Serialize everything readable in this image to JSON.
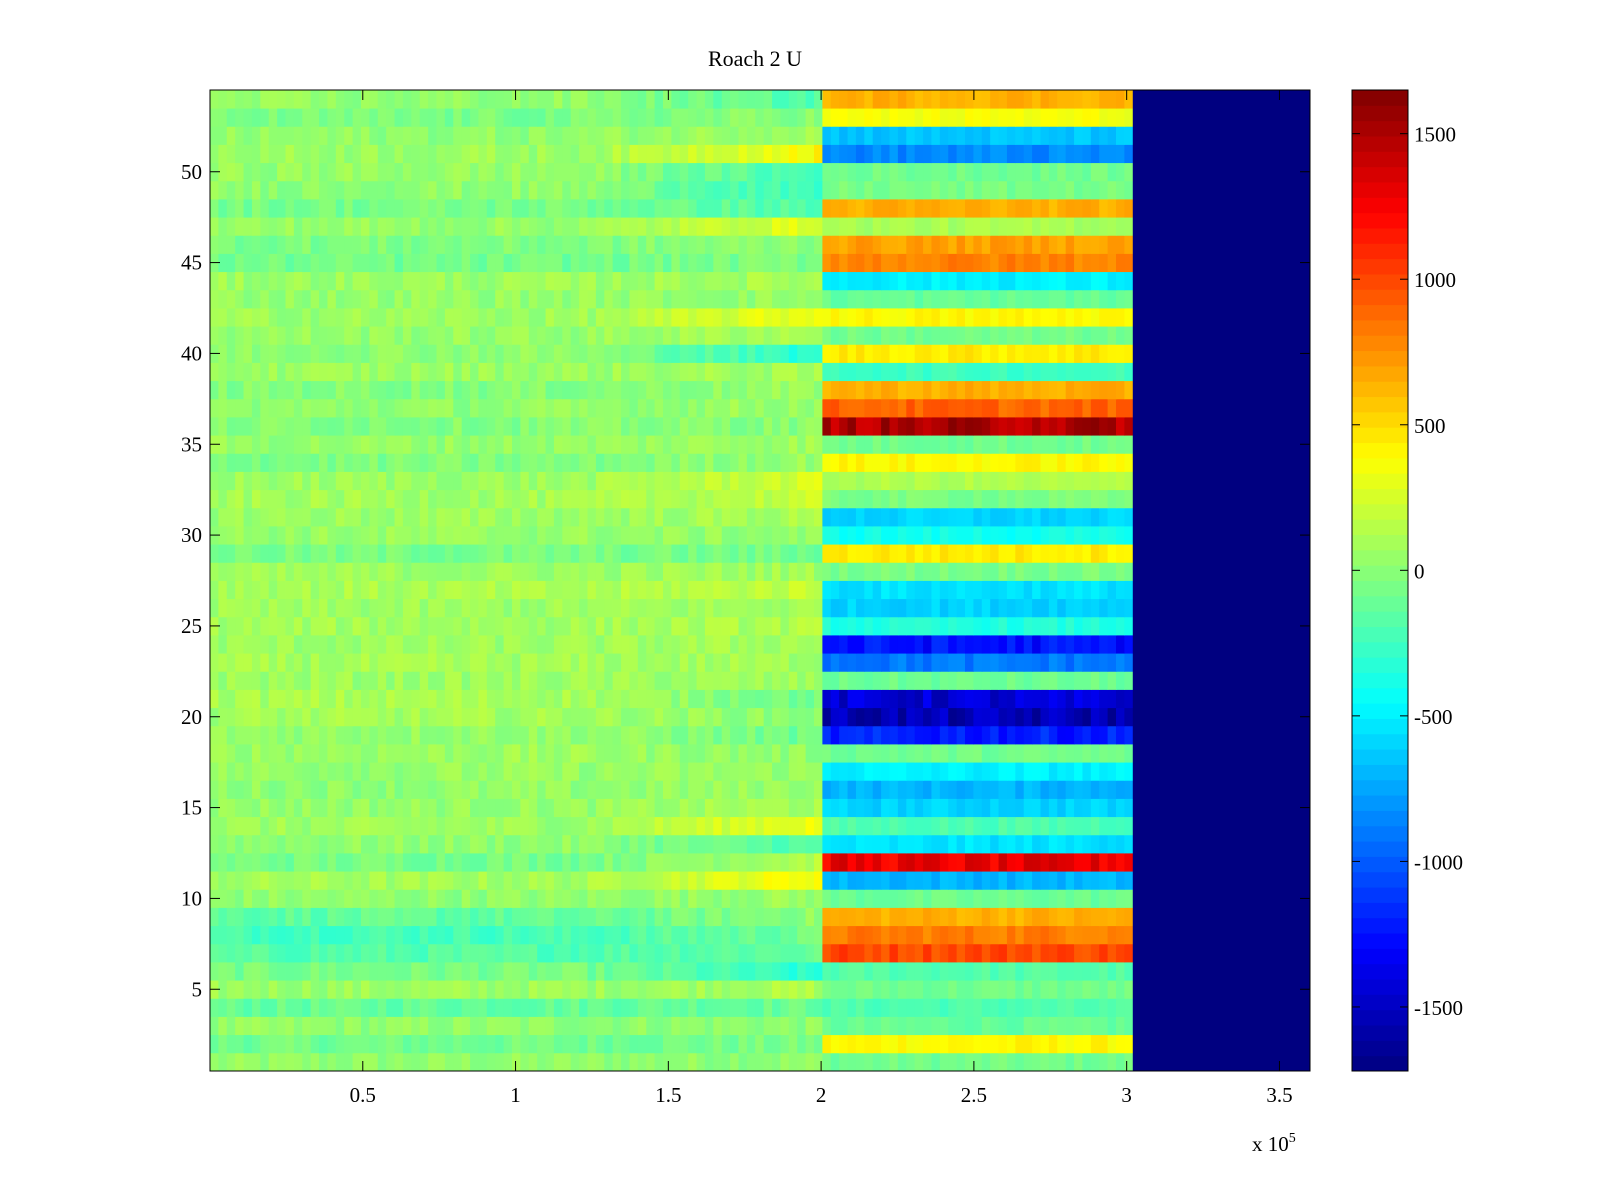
{
  "chart_data": {
    "type": "heatmap",
    "title": "Roach 2 U",
    "xlabel": "",
    "ylabel": "",
    "x_exponent_label": "x 10",
    "x_exponent_power": "5",
    "x_range_scaled": [
      0,
      3.6
    ],
    "x_multiplier": 100000,
    "y_range": [
      0.5,
      54.5
    ],
    "xticks": [
      {
        "value": 0.5,
        "label": "0.5"
      },
      {
        "value": 1,
        "label": "1"
      },
      {
        "value": 1.5,
        "label": "1.5"
      },
      {
        "value": 2,
        "label": "2"
      },
      {
        "value": 2.5,
        "label": "2.5"
      },
      {
        "value": 3,
        "label": "3"
      },
      {
        "value": 3.5,
        "label": "3.5"
      }
    ],
    "yticks": [
      {
        "value": 5,
        "label": "5"
      },
      {
        "value": 10,
        "label": "10"
      },
      {
        "value": 15,
        "label": "15"
      },
      {
        "value": 20,
        "label": "20"
      },
      {
        "value": 25,
        "label": "25"
      },
      {
        "value": 30,
        "label": "30"
      },
      {
        "value": 35,
        "label": "35"
      },
      {
        "value": 40,
        "label": "40"
      },
      {
        "value": 45,
        "label": "45"
      },
      {
        "value": 50,
        "label": "50"
      }
    ],
    "colormap": "jet",
    "clim": [
      -1720,
      1650
    ],
    "colorbar_ticks": [
      {
        "value": 1500,
        "label": "1500"
      },
      {
        "value": 1000,
        "label": "1000"
      },
      {
        "value": 500,
        "label": "500"
      },
      {
        "value": 0,
        "label": "0"
      },
      {
        "value": -500,
        "label": "-500"
      },
      {
        "value": -1000,
        "label": "-1000"
      },
      {
        "value": -1500,
        "label": "-1500"
      }
    ],
    "region_boundaries_scaled": [
      2.01,
      3.02
    ],
    "empty_region_value": -1720,
    "rows": [
      {
        "row": 1,
        "early": 20,
        "late": 20,
        "high": -80
      },
      {
        "row": 2,
        "early": -80,
        "late": -60,
        "high": 400
      },
      {
        "row": 3,
        "early": 20,
        "late": 10,
        "high": -120
      },
      {
        "row": 4,
        "early": -120,
        "late": -100,
        "high": -200
      },
      {
        "row": 5,
        "early": 60,
        "late": 120,
        "high": -80
      },
      {
        "row": 6,
        "early": -60,
        "late": -350,
        "high": -180
      },
      {
        "row": 7,
        "early": -180,
        "late": -120,
        "high": 1000
      },
      {
        "row": 8,
        "early": -220,
        "late": -80,
        "high": 820
      },
      {
        "row": 9,
        "early": -140,
        "late": 20,
        "high": 650
      },
      {
        "row": 10,
        "early": 20,
        "late": 60,
        "high": -100
      },
      {
        "row": 11,
        "early": 80,
        "late": 400,
        "high": -700
      },
      {
        "row": 12,
        "early": -60,
        "late": 150,
        "high": 1280
      },
      {
        "row": 13,
        "early": 20,
        "late": -200,
        "high": -550
      },
      {
        "row": 14,
        "early": 60,
        "late": 350,
        "high": -200
      },
      {
        "row": 15,
        "early": 40,
        "late": 100,
        "high": -600
      },
      {
        "row": 16,
        "early": 20,
        "late": 60,
        "high": -700
      },
      {
        "row": 17,
        "early": 40,
        "late": 50,
        "high": -500
      },
      {
        "row": 18,
        "early": 60,
        "late": 20,
        "high": -80
      },
      {
        "row": 19,
        "early": 40,
        "late": -100,
        "high": -1200
      },
      {
        "row": 20,
        "early": 80,
        "late": 0,
        "high": -1550
      },
      {
        "row": 21,
        "early": 100,
        "late": -80,
        "high": -1450
      },
      {
        "row": 22,
        "early": 60,
        "late": 60,
        "high": -100
      },
      {
        "row": 23,
        "early": 80,
        "late": 80,
        "high": -900
      },
      {
        "row": 24,
        "early": 60,
        "late": 100,
        "high": -1250
      },
      {
        "row": 25,
        "early": 80,
        "late": 120,
        "high": -350
      },
      {
        "row": 26,
        "early": 60,
        "late": 80,
        "high": -600
      },
      {
        "row": 27,
        "early": 100,
        "late": 200,
        "high": -550
      },
      {
        "row": 28,
        "early": 60,
        "late": 80,
        "high": -50
      },
      {
        "row": 29,
        "early": -60,
        "late": -80,
        "high": 450
      },
      {
        "row": 30,
        "early": 40,
        "late": 20,
        "high": -400
      },
      {
        "row": 31,
        "early": 60,
        "late": 100,
        "high": -600
      },
      {
        "row": 32,
        "early": 80,
        "late": 200,
        "high": -50
      },
      {
        "row": 33,
        "early": 60,
        "late": 250,
        "high": 120
      },
      {
        "row": 34,
        "early": -40,
        "late": 60,
        "high": 400
      },
      {
        "row": 35,
        "early": 40,
        "late": 80,
        "high": -80
      },
      {
        "row": 36,
        "early": -20,
        "late": 0,
        "high": 1500
      },
      {
        "row": 37,
        "early": 20,
        "late": 60,
        "high": 900
      },
      {
        "row": 38,
        "early": -20,
        "late": 40,
        "high": 650
      },
      {
        "row": 39,
        "early": 60,
        "late": 80,
        "high": -250
      },
      {
        "row": 40,
        "early": 20,
        "late": -350,
        "high": 450
      },
      {
        "row": 41,
        "early": 40,
        "late": 120,
        "high": -80
      },
      {
        "row": 42,
        "early": 60,
        "late": 350,
        "high": 400
      },
      {
        "row": 43,
        "early": 40,
        "late": 40,
        "high": -120
      },
      {
        "row": 44,
        "early": 60,
        "late": 100,
        "high": -500
      },
      {
        "row": 45,
        "early": -80,
        "late": -40,
        "high": 800
      },
      {
        "row": 46,
        "early": -40,
        "late": 20,
        "high": 700
      },
      {
        "row": 47,
        "early": 40,
        "late": 300,
        "high": 100
      },
      {
        "row": 48,
        "early": -60,
        "late": -200,
        "high": 650
      },
      {
        "row": 49,
        "early": 20,
        "late": -300,
        "high": -60
      },
      {
        "row": 50,
        "early": 40,
        "late": -250,
        "high": -80
      },
      {
        "row": 51,
        "early": 60,
        "late": 400,
        "high": -850
      },
      {
        "row": 52,
        "early": 20,
        "late": 100,
        "high": -650
      },
      {
        "row": 53,
        "early": -60,
        "late": 0,
        "high": 350
      },
      {
        "row": 54,
        "early": 20,
        "late": -200,
        "high": 650
      }
    ]
  }
}
